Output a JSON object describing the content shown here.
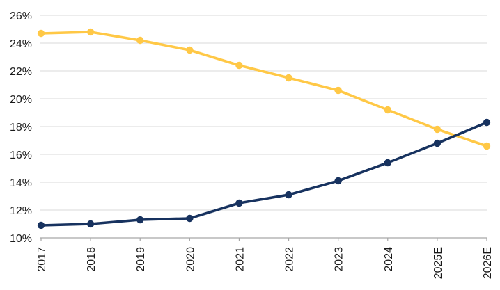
{
  "chart_data": {
    "type": "line",
    "title": "",
    "xlabel": "",
    "ylabel": "",
    "categories": [
      "2017",
      "2018",
      "2019",
      "2020",
      "2021",
      "2022",
      "2023",
      "2024",
      "2025E",
      "2026E"
    ],
    "series": [
      {
        "name": "yellow-declining-series",
        "color": "#FFC846",
        "values": [
          24.7,
          24.8,
          24.2,
          23.5,
          22.4,
          21.5,
          20.6,
          19.2,
          17.8,
          16.6
        ]
      },
      {
        "name": "navy-rising-series",
        "color": "#17325F",
        "values": [
          10.9,
          11.0,
          11.3,
          11.4,
          12.5,
          13.1,
          14.1,
          15.4,
          16.8,
          18.3
        ]
      }
    ],
    "ylim": [
      10,
      26
    ],
    "ytick_step": 2,
    "ytick_labels": [
      "10%",
      "12%",
      "14%",
      "16%",
      "18%",
      "20%",
      "22%",
      "24%",
      "26%"
    ],
    "x_axis_label_rotation_degrees": -90,
    "grid": true,
    "legend_position": "none",
    "marker": "circle"
  },
  "colors": {
    "background": "#FFFFFF",
    "gridline": "#D9D9D9",
    "axis_line": "#A6A6A6",
    "tick": "#A6A6A6",
    "label_text": "#1A1A1A"
  }
}
